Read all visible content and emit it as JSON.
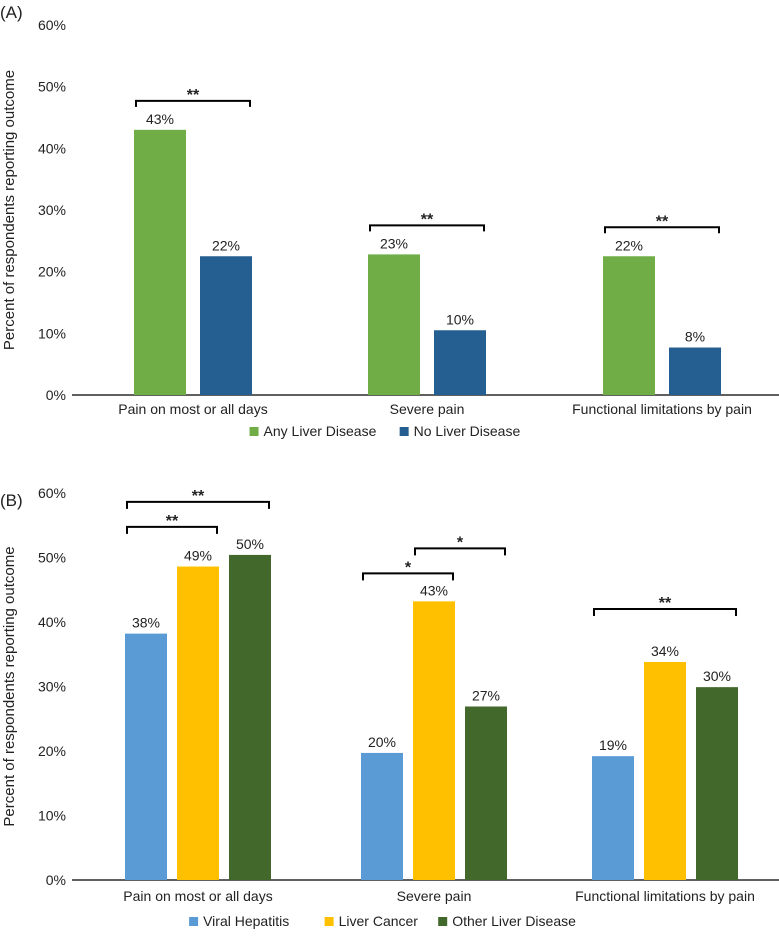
{
  "chart_data": [
    {
      "type": "bar",
      "panel_label": "(A)",
      "ylabel": "Percent of respondents reporting outcome",
      "ylim": [
        0,
        60
      ],
      "yticks": [
        "0%",
        "10%",
        "20%",
        "30%",
        "40%",
        "50%",
        "60%"
      ],
      "categories": [
        "Pain on most or all days",
        "Severe pain",
        "Functional limitations by pain"
      ],
      "series": [
        {
          "name": "Any Liver Disease",
          "color": "#70AD47",
          "values": [
            43,
            22.8,
            22.5
          ],
          "labels": [
            "43%",
            "23%",
            "22%"
          ]
        },
        {
          "name": "No Liver Disease",
          "color": "#255E91",
          "values": [
            22.5,
            10.5,
            7.7
          ],
          "labels": [
            "22%",
            "10%",
            "8%"
          ]
        }
      ],
      "significance": [
        {
          "category": 0,
          "from": 0,
          "to": 1,
          "level": 0,
          "text": "**"
        },
        {
          "category": 1,
          "from": 0,
          "to": 1,
          "level": 0,
          "text": "**"
        },
        {
          "category": 2,
          "from": 0,
          "to": 1,
          "level": 0,
          "text": "**"
        }
      ],
      "legend": "bottom"
    },
    {
      "type": "bar",
      "panel_label": "(B)",
      "ylabel": "Percent of respondents reporting outcome",
      "ylim": [
        0,
        60
      ],
      "yticks": [
        "0%",
        "10%",
        "20%",
        "30%",
        "40%",
        "50%",
        "60%"
      ],
      "categories": [
        "Pain on most or all days",
        "Severe pain",
        "Functional limitations by pain"
      ],
      "series": [
        {
          "name": "Viral Hepatitis",
          "color": "#5B9BD5",
          "values": [
            38.2,
            19.7,
            19.2
          ],
          "labels": [
            "38%",
            "20%",
            "19%"
          ]
        },
        {
          "name": "Liver Cancer",
          "color": "#FFC000",
          "values": [
            48.6,
            43.2,
            33.8
          ],
          "labels": [
            "49%",
            "43%",
            "34%"
          ]
        },
        {
          "name": "Other Liver Disease",
          "color": "#43682B",
          "values": [
            50.4,
            26.9,
            29.9
          ],
          "labels": [
            "50%",
            "27%",
            "30%"
          ]
        }
      ],
      "significance": [
        {
          "category": 0,
          "from": 0,
          "to": 1,
          "level": 0,
          "text": "**"
        },
        {
          "category": 0,
          "from": 0,
          "to": 2,
          "level": 1,
          "text": "**"
        },
        {
          "category": 1,
          "from": 0,
          "to": 1,
          "level": 0,
          "text": "*"
        },
        {
          "category": 1,
          "from": 1,
          "to": 2,
          "level": 1,
          "text": "*"
        },
        {
          "category": 2,
          "from": 0,
          "to": 2,
          "level": 1,
          "text": "**"
        }
      ],
      "legend": "bottom"
    }
  ]
}
